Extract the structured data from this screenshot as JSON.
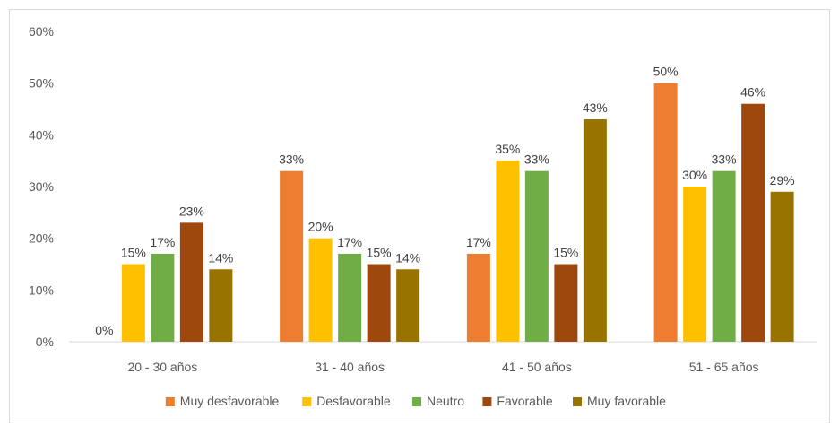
{
  "chart_data": {
    "type": "bar",
    "title": "",
    "xlabel": "",
    "ylabel": "",
    "categories": [
      "20 - 30 años",
      "31 - 40 años",
      "41 - 50 años",
      "51 - 65 años"
    ],
    "series": [
      {
        "name": "Muy desfavorable",
        "color": "#ED7D31",
        "values": [
          0,
          33,
          17,
          50
        ],
        "labels": [
          "0%",
          "33%",
          "17%",
          "50%"
        ]
      },
      {
        "name": "Desfavorable",
        "color": "#FFC000",
        "values": [
          15,
          20,
          35,
          30
        ],
        "labels": [
          "15%",
          "20%",
          "35%",
          "30%"
        ]
      },
      {
        "name": "Neutro",
        "color": "#70AD47",
        "values": [
          17,
          17,
          33,
          33
        ],
        "labels": [
          "17%",
          "17%",
          "33%",
          "33%"
        ]
      },
      {
        "name": "Favorable",
        "color": "#9E480E",
        "values": [
          23,
          15,
          15,
          46
        ],
        "labels": [
          "23%",
          "15%",
          "15%",
          "46%"
        ]
      },
      {
        "name": "Muy favorable",
        "color": "#997300",
        "values": [
          14,
          14,
          43,
          29
        ],
        "labels": [
          "14%",
          "14%",
          "43%",
          "29%"
        ]
      }
    ],
    "ylim": [
      0,
      60
    ],
    "yticks": [
      "0%",
      "10%",
      "20%",
      "30%",
      "40%",
      "50%",
      "60%"
    ],
    "grid": false,
    "legend_position": "bottom"
  }
}
